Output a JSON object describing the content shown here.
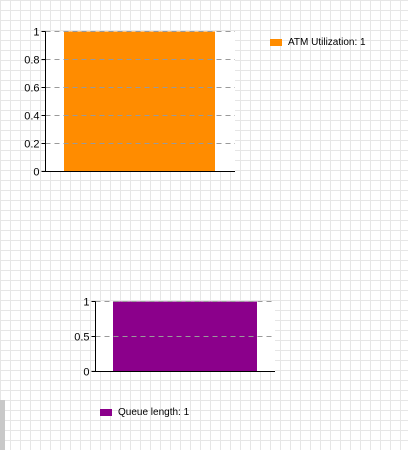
{
  "chart_data": [
    {
      "type": "bar",
      "categories": [
        ""
      ],
      "series": [
        {
          "name": "ATM Utilization",
          "values": [
            1
          ]
        }
      ],
      "yticks": [
        "0",
        "0.2",
        "0.4",
        "0.6",
        "0.8",
        "1"
      ],
      "ylim": [
        0,
        1
      ],
      "grid": true,
      "legend_position": "right",
      "legend_label": "ATM Utilization: 1",
      "color": "#ff8c00"
    },
    {
      "type": "bar",
      "categories": [
        ""
      ],
      "series": [
        {
          "name": "Queue length",
          "values": [
            1
          ]
        }
      ],
      "yticks": [
        "0",
        "0.5",
        "1"
      ],
      "ylim": [
        0,
        1
      ],
      "grid": true,
      "legend_position": "bottom",
      "legend_label": "Queue length: 1",
      "color": "#8b008b"
    }
  ]
}
